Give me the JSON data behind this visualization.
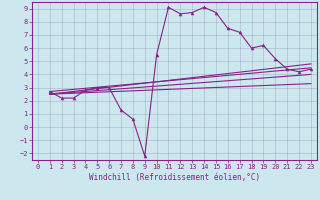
{
  "xlabel": "Windchill (Refroidissement éolien,°C)",
  "bg_color": "#cce8ee",
  "line_color": "#882288",
  "grid_color": "#aadddd",
  "xlim": [
    -0.5,
    23.5
  ],
  "ylim": [
    -2.5,
    9.5
  ],
  "xticks": [
    0,
    1,
    2,
    3,
    4,
    5,
    6,
    7,
    8,
    9,
    10,
    11,
    12,
    13,
    14,
    15,
    16,
    17,
    18,
    19,
    20,
    21,
    22,
    23
  ],
  "yticks": [
    -2,
    -1,
    0,
    1,
    2,
    3,
    4,
    5,
    6,
    7,
    8,
    9
  ],
  "curve1_x": [
    1,
    2,
    3,
    4,
    5,
    6,
    7,
    8,
    9,
    10,
    11,
    12,
    13,
    14,
    15,
    16,
    17,
    18,
    19,
    20,
    21,
    22,
    23
  ],
  "curve1_y": [
    2.7,
    2.2,
    2.2,
    2.8,
    3.0,
    3.0,
    1.3,
    0.6,
    -2.2,
    5.5,
    9.1,
    8.6,
    8.7,
    9.1,
    8.7,
    7.5,
    7.2,
    6.0,
    6.2,
    5.2,
    4.4,
    4.2,
    4.4
  ],
  "line1_x": [
    1,
    23
  ],
  "line1_y": [
    2.7,
    4.5
  ],
  "line2_x": [
    1,
    23
  ],
  "line2_y": [
    2.5,
    3.3
  ],
  "line3_x": [
    1,
    23
  ],
  "line3_y": [
    2.5,
    4.0
  ],
  "line4_x": [
    1,
    23
  ],
  "line4_y": [
    2.5,
    4.8
  ],
  "xlabel_fontsize": 5.5,
  "tick_fontsize": 5.0
}
